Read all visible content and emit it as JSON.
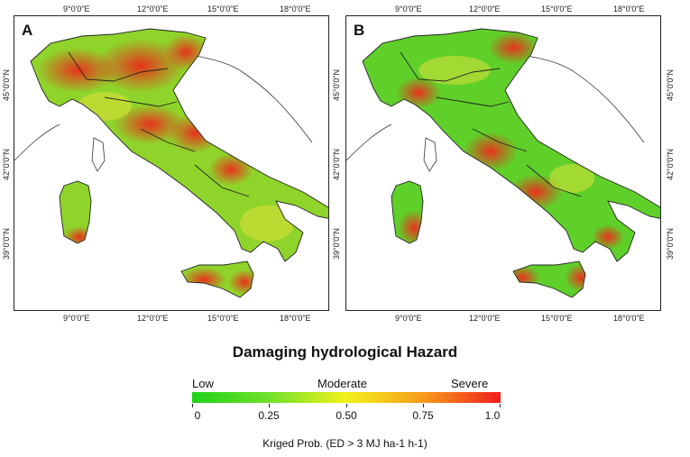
{
  "panels": [
    {
      "label": "A"
    },
    {
      "label": "B"
    }
  ],
  "lon_ticks": [
    "9°0'0\"E",
    "12°0'0\"E",
    "15°0'0\"E",
    "18°0'0\"E"
  ],
  "lat_ticks": [
    "45°0'0\"N",
    "42°0'0\"N",
    "39°0'0\"N"
  ],
  "legend": {
    "title": "Damaging hydrological Hazard",
    "categories": [
      "Low",
      "Moderate",
      "Severe"
    ],
    "scale_values": [
      "0",
      "0.25",
      "0.50",
      "0.75",
      "1.0"
    ],
    "colors": [
      "#1fd21a",
      "#6fe02a",
      "#f2f21a",
      "#f79a1a",
      "#f01e1e"
    ]
  },
  "axis_caption": "Kriged Prob. (ED > 3 MJ ha-1 h-1)"
}
